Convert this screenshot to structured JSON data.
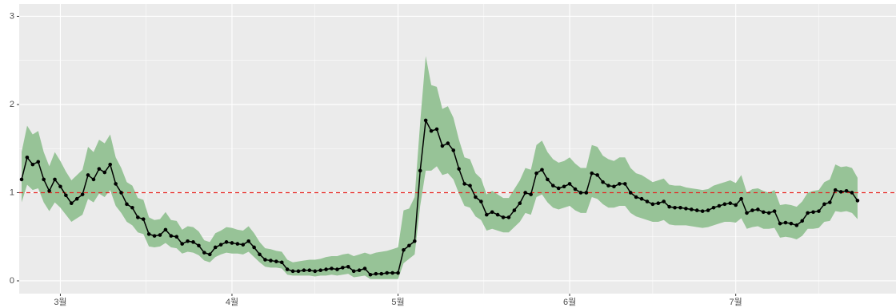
{
  "chart_data": {
    "type": "line",
    "categories": [
      null,
      null,
      null,
      null,
      null,
      null,
      null,
      "3월",
      null,
      null,
      null,
      null,
      null,
      null,
      null,
      null,
      null,
      null,
      null,
      null,
      null,
      null,
      null,
      null,
      null,
      null,
      null,
      null,
      null,
      null,
      null,
      null,
      null,
      null,
      null,
      null,
      null,
      null,
      "4월",
      null,
      null,
      null,
      null,
      null,
      null,
      null,
      null,
      null,
      null,
      null,
      null,
      null,
      null,
      null,
      null,
      null,
      null,
      null,
      null,
      null,
      null,
      null,
      null,
      null,
      null,
      null,
      null,
      null,
      "5월",
      null,
      null,
      null,
      null,
      null,
      null,
      null,
      null,
      null,
      null,
      null,
      null,
      null,
      null,
      null,
      null,
      null,
      null,
      null,
      null,
      null,
      null,
      null,
      null,
      null,
      null,
      null,
      null,
      null,
      null,
      "6월",
      null,
      null,
      null,
      null,
      null,
      null,
      null,
      null,
      null,
      null,
      null,
      null,
      null,
      null,
      null,
      null,
      null,
      null,
      null,
      null,
      null,
      null,
      null,
      null,
      null,
      null,
      null,
      null,
      null,
      "7월",
      null,
      null,
      null,
      null,
      null,
      null,
      null,
      null,
      null,
      null,
      null,
      null,
      null,
      null,
      null,
      null,
      null,
      null,
      null,
      null,
      null,
      null
    ],
    "series": [
      {
        "color": "#000000",
        "band_color": "#97c397",
        "values": [
          1.15,
          1.4,
          1.32,
          1.35,
          1.15,
          1.02,
          1.15,
          1.07,
          0.97,
          0.88,
          0.93,
          0.98,
          1.2,
          1.15,
          1.27,
          1.23,
          1.32,
          1.1,
          1.0,
          0.87,
          0.83,
          0.72,
          0.7,
          0.53,
          0.51,
          0.52,
          0.58,
          0.51,
          0.5,
          0.42,
          0.45,
          0.44,
          0.4,
          0.32,
          0.3,
          0.38,
          0.41,
          0.44,
          0.43,
          0.42,
          0.41,
          0.45,
          0.38,
          0.3,
          0.24,
          0.23,
          0.22,
          0.21,
          0.13,
          0.11,
          0.11,
          0.12,
          0.12,
          0.11,
          0.12,
          0.13,
          0.14,
          0.13,
          0.15,
          0.16,
          0.11,
          0.12,
          0.14,
          0.07,
          0.08,
          0.08,
          0.09,
          0.09,
          0.09,
          0.35,
          0.4,
          0.45,
          1.25,
          1.82,
          1.7,
          1.72,
          1.53,
          1.56,
          1.48,
          1.27,
          1.1,
          1.08,
          0.95,
          0.9,
          0.75,
          0.78,
          0.75,
          0.72,
          0.72,
          0.8,
          0.88,
          1.0,
          0.98,
          1.22,
          1.26,
          1.15,
          1.08,
          1.05,
          1.07,
          1.1,
          1.04,
          1.0,
          1.0,
          1.22,
          1.2,
          1.12,
          1.08,
          1.07,
          1.1,
          1.1,
          1.0,
          0.95,
          0.93,
          0.9,
          0.87,
          0.88,
          0.9,
          0.84,
          0.83,
          0.83,
          0.82,
          0.81,
          0.8,
          0.79,
          0.8,
          0.83,
          0.85,
          0.87,
          0.88,
          0.86,
          0.93,
          0.77,
          0.8,
          0.81,
          0.78,
          0.77,
          0.79,
          0.65,
          0.66,
          0.65,
          0.63,
          0.68,
          0.77,
          0.78,
          0.79,
          0.87,
          0.89,
          1.03,
          1.01,
          1.02,
          1.0,
          0.91
        ],
        "lower": [
          0.89,
          1.09,
          1.03,
          1.05,
          0.89,
          0.79,
          0.89,
          0.83,
          0.75,
          0.67,
          0.71,
          0.75,
          0.93,
          0.89,
          0.99,
          0.95,
          1.03,
          0.85,
          0.77,
          0.67,
          0.63,
          0.55,
          0.53,
          0.39,
          0.38,
          0.39,
          0.43,
          0.38,
          0.37,
          0.31,
          0.33,
          0.32,
          0.29,
          0.23,
          0.21,
          0.27,
          0.3,
          0.32,
          0.31,
          0.31,
          0.3,
          0.33,
          0.27,
          0.21,
          0.16,
          0.15,
          0.15,
          0.14,
          0.07,
          0.06,
          0.06,
          0.06,
          0.06,
          0.05,
          0.06,
          0.06,
          0.07,
          0.06,
          0.07,
          0.08,
          0.04,
          0.05,
          0.06,
          0.02,
          0.02,
          0.02,
          0.02,
          0.02,
          0.02,
          0.2,
          0.25,
          0.3,
          0.85,
          1.25,
          1.25,
          1.3,
          1.2,
          1.22,
          1.15,
          0.99,
          0.85,
          0.83,
          0.73,
          0.69,
          0.57,
          0.59,
          0.57,
          0.55,
          0.55,
          0.61,
          0.67,
          0.77,
          0.75,
          0.95,
          0.98,
          0.89,
          0.83,
          0.81,
          0.83,
          0.85,
          0.8,
          0.77,
          0.77,
          0.95,
          0.93,
          0.87,
          0.83,
          0.83,
          0.85,
          0.85,
          0.77,
          0.73,
          0.71,
          0.69,
          0.67,
          0.67,
          0.69,
          0.64,
          0.63,
          0.63,
          0.63,
          0.62,
          0.61,
          0.6,
          0.61,
          0.63,
          0.65,
          0.67,
          0.67,
          0.66,
          0.71,
          0.59,
          0.61,
          0.62,
          0.59,
          0.59,
          0.6,
          0.49,
          0.5,
          0.49,
          0.47,
          0.51,
          0.59,
          0.59,
          0.6,
          0.67,
          0.68,
          0.79,
          0.78,
          0.79,
          0.77,
          0.7
        ],
        "upper": [
          1.46,
          1.76,
          1.66,
          1.7,
          1.46,
          1.3,
          1.46,
          1.36,
          1.24,
          1.14,
          1.2,
          1.26,
          1.52,
          1.46,
          1.6,
          1.56,
          1.66,
          1.4,
          1.28,
          1.12,
          1.08,
          0.94,
          0.92,
          0.72,
          0.69,
          0.7,
          0.78,
          0.69,
          0.68,
          0.58,
          0.62,
          0.61,
          0.56,
          0.46,
          0.44,
          0.54,
          0.57,
          0.61,
          0.6,
          0.58,
          0.57,
          0.62,
          0.54,
          0.44,
          0.37,
          0.36,
          0.34,
          0.33,
          0.24,
          0.21,
          0.22,
          0.23,
          0.24,
          0.24,
          0.25,
          0.27,
          0.28,
          0.28,
          0.3,
          0.31,
          0.28,
          0.3,
          0.32,
          0.3,
          0.32,
          0.33,
          0.34,
          0.36,
          0.38,
          0.8,
          0.82,
          0.95,
          1.8,
          2.55,
          2.22,
          2.2,
          1.95,
          1.98,
          1.85,
          1.6,
          1.4,
          1.38,
          1.22,
          1.16,
          0.98,
          1.02,
          0.98,
          0.94,
          0.94,
          1.04,
          1.14,
          1.28,
          1.26,
          1.54,
          1.59,
          1.46,
          1.38,
          1.34,
          1.36,
          1.4,
          1.33,
          1.28,
          1.28,
          1.54,
          1.52,
          1.42,
          1.38,
          1.36,
          1.4,
          1.4,
          1.28,
          1.22,
          1.2,
          1.16,
          1.12,
          1.14,
          1.16,
          1.09,
          1.08,
          1.08,
          1.06,
          1.05,
          1.04,
          1.03,
          1.04,
          1.08,
          1.1,
          1.12,
          1.14,
          1.11,
          1.2,
          1.0,
          1.04,
          1.05,
          1.02,
          1.0,
          1.03,
          0.86,
          0.87,
          0.86,
          0.84,
          0.9,
          1.0,
          1.02,
          1.03,
          1.12,
          1.15,
          1.32,
          1.29,
          1.3,
          1.28,
          1.17
        ]
      }
    ],
    "hline": 1,
    "hline_color": "#e8211d",
    "ylim": [
      -0.145,
      3.14
    ],
    "yticks": [
      0,
      1,
      2,
      3
    ],
    "grid": true
  }
}
